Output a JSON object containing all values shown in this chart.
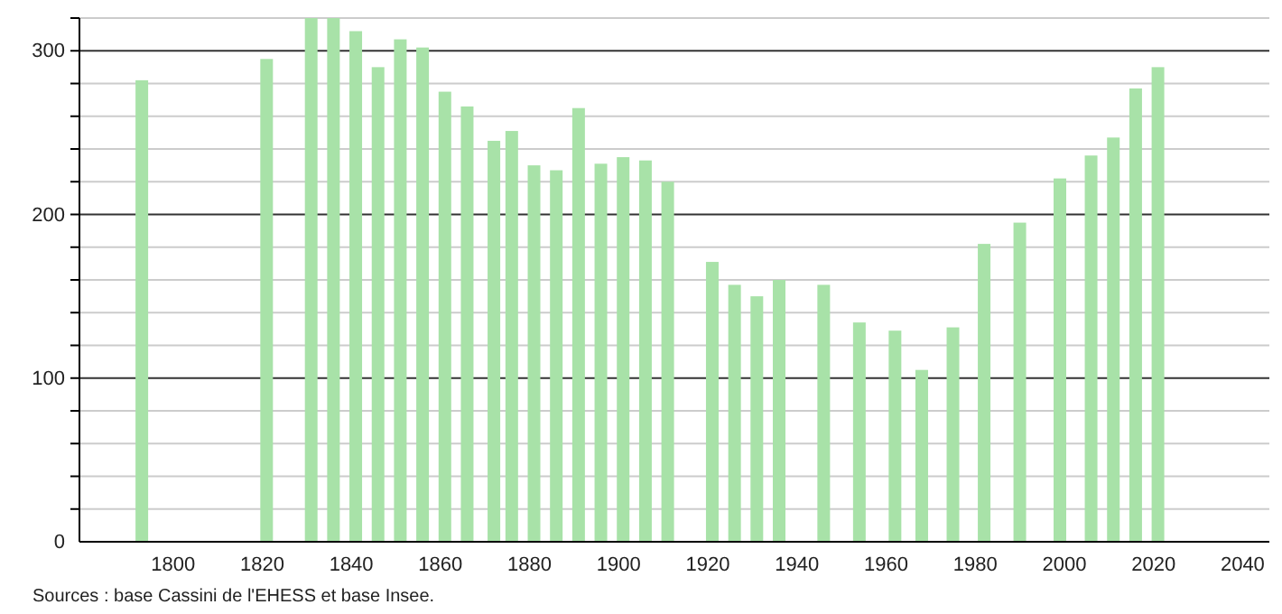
{
  "chart_data": {
    "type": "bar",
    "x": [
      1793,
      1821,
      1831,
      1836,
      1841,
      1846,
      1851,
      1856,
      1861,
      1866,
      1872,
      1876,
      1881,
      1886,
      1891,
      1896,
      1901,
      1906,
      1911,
      1921,
      1926,
      1931,
      1936,
      1946,
      1954,
      1962,
      1968,
      1975,
      1982,
      1990,
      1999,
      2006,
      2011,
      2016,
      2021
    ],
    "values": [
      282,
      295,
      320,
      320,
      312,
      290,
      307,
      302,
      275,
      266,
      245,
      251,
      230,
      227,
      265,
      231,
      235,
      233,
      220,
      171,
      157,
      150,
      160,
      157,
      134,
      129,
      105,
      131,
      182,
      195,
      222,
      236,
      247,
      277,
      290
    ],
    "color": "#a8e2a8",
    "xlim": [
      1779,
      2046
    ],
    "xticks": [
      1800,
      1820,
      1840,
      1860,
      1880,
      1900,
      1920,
      1940,
      1960,
      1980,
      2000,
      2020,
      2040
    ],
    "ylim": [
      0,
      320
    ],
    "yticks": [
      0,
      {
        "value": 20,
        "label": null
      },
      {
        "value": 40,
        "label": null
      },
      {
        "value": 60,
        "label": null
      },
      {
        "value": 80,
        "label": null
      },
      100,
      {
        "value": 120,
        "label": null
      },
      {
        "value": 140,
        "label": null
      },
      {
        "value": 160,
        "label": null
      },
      {
        "value": 180,
        "label": null
      },
      200,
      {
        "value": 220,
        "label": null
      },
      {
        "value": 240,
        "label": null
      },
      {
        "value": 260,
        "label": null
      },
      {
        "value": 280,
        "label": null
      },
      300,
      {
        "value": 320,
        "label": null
      }
    ],
    "grid": "y",
    "annotations": [
      "Sources : base Cassini de l'EHESS et base Insee."
    ]
  }
}
